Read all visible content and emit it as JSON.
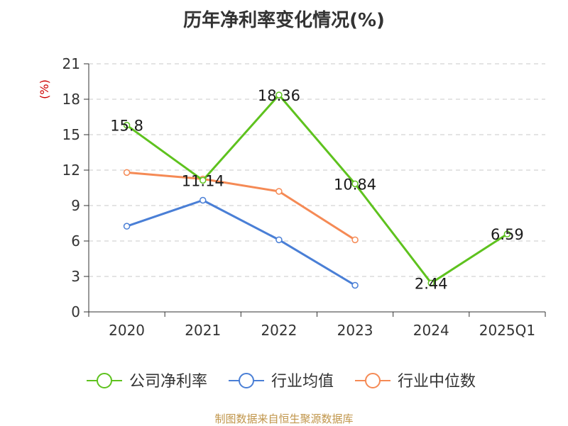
{
  "title": "历年净利率变化情况(%)",
  "source_note": "制图数据来自恒生聚源数据库",
  "chart_data": {
    "type": "line",
    "title": "历年净利率变化情况(%)",
    "ylabel": "(%)",
    "xlabel": "",
    "categories": [
      "2020",
      "2021",
      "2022",
      "2023",
      "2024",
      "2025Q1"
    ],
    "ylim": [
      0,
      21
    ],
    "yticks": [
      0,
      3,
      6,
      9,
      12,
      15,
      18,
      21
    ],
    "grid": "horizontal-dashed",
    "legend_position": "bottom",
    "series": [
      {
        "name": "公司净利率",
        "color": "#5ec21e",
        "values": [
          15.8,
          11.14,
          18.36,
          10.84,
          2.44,
          6.59
        ],
        "labels": [
          "15.8",
          "11.14",
          "18.36",
          "10.84",
          "2.44",
          "6.59"
        ]
      },
      {
        "name": "行业均值",
        "color": "#4a7fd6",
        "values": [
          7.25,
          9.45,
          6.1,
          2.25,
          null,
          null
        ]
      },
      {
        "name": "行业中位数",
        "color": "#f58a55",
        "values": [
          11.8,
          11.25,
          10.2,
          6.1,
          null,
          null
        ]
      }
    ]
  }
}
